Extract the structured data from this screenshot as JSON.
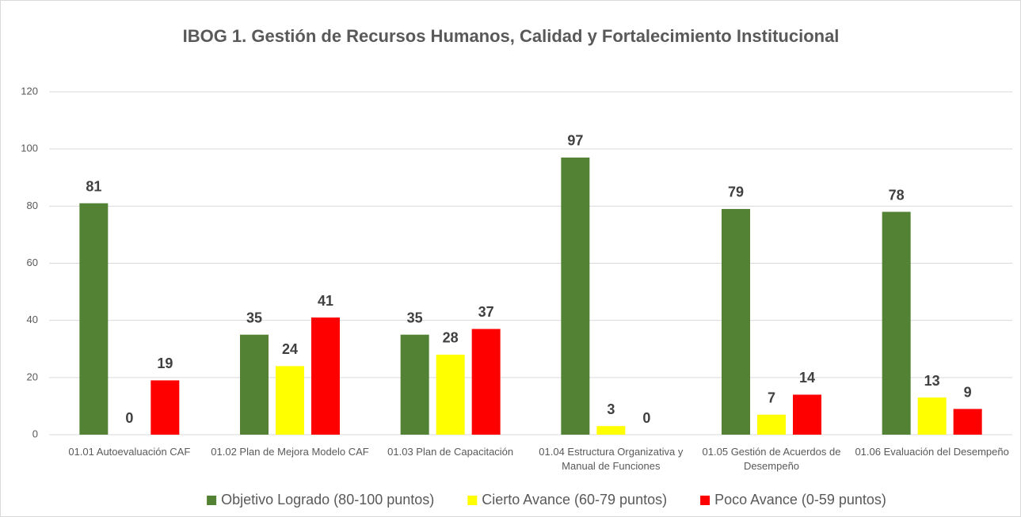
{
  "chart_data": {
    "type": "bar",
    "title": "IBOG 1. Gestión de Recursos Humanos, Calidad y Fortalecimiento Institucional",
    "categories": [
      "01.01 Autoevaluación CAF",
      "01.02 Plan de Mejora Modelo CAF",
      "01.03 Plan de Capacitación",
      "01.04 Estructura Organizativa y Manual de Funciones",
      "01.05 Gestión de Acuerdos de Desempeño",
      "01.06 Evaluación del Desempeño"
    ],
    "series": [
      {
        "name": "Objetivo Logrado (80-100 puntos)",
        "color": "#548235",
        "values": [
          81,
          35,
          35,
          97,
          79,
          78
        ]
      },
      {
        "name": "Cierto Avance (60-79 puntos)",
        "color": "#ffff00",
        "values": [
          0,
          24,
          28,
          3,
          7,
          13
        ]
      },
      {
        "name": "Poco Avance (0-59 puntos)",
        "color": "#ff0000",
        "values": [
          19,
          41,
          37,
          0,
          14,
          9
        ]
      }
    ],
    "ylim": [
      0,
      120
    ],
    "yticks": [
      0,
      20,
      40,
      60,
      80,
      100,
      120
    ],
    "grid": true,
    "legend": "bottom"
  }
}
